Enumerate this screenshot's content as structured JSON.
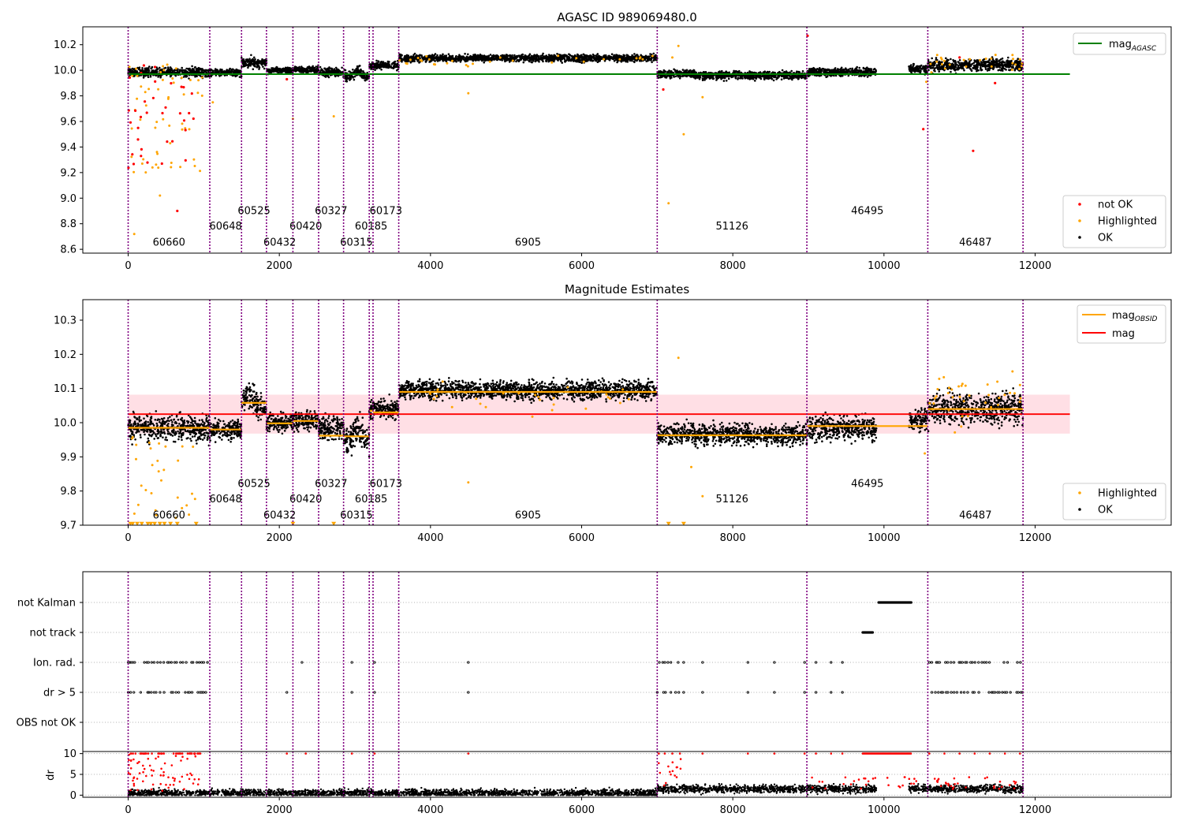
{
  "figure": {
    "width": 1500,
    "height": 1050
  },
  "chart_data": [
    {
      "type": "scatter",
      "title": "AGASC ID 989069480.0",
      "xlim": [
        -600,
        13800
      ],
      "ylim": [
        8.57,
        10.34
      ],
      "xticks": [
        0,
        2000,
        4000,
        6000,
        8000,
        10000,
        12000
      ],
      "yticks": [
        8.6,
        8.8,
        9.0,
        9.2,
        9.4,
        9.6,
        9.8,
        10.0,
        10.2
      ],
      "ytick_labels": [
        "8.6",
        "8.8",
        "9.0",
        "9.2",
        "9.4",
        "9.6",
        "9.8",
        "10.0",
        "10.2"
      ],
      "obsid_boundaries": [
        0,
        1080,
        1500,
        1830,
        2180,
        2520,
        2850,
        3190,
        3240,
        3580,
        7000,
        8980,
        10580,
        11840
      ],
      "obsid_labels": [
        {
          "text": "60660",
          "x": 540,
          "y": 8.63
        },
        {
          "text": "60648",
          "x": 1290,
          "y": 8.755
        },
        {
          "text": "60525",
          "x": 1665,
          "y": 8.875
        },
        {
          "text": "60432",
          "x": 2005,
          "y": 8.63
        },
        {
          "text": "60420",
          "x": 2350,
          "y": 8.755
        },
        {
          "text": "60327",
          "x": 2685,
          "y": 8.875
        },
        {
          "text": "60315",
          "x": 3020,
          "y": 8.63
        },
        {
          "text": "60185",
          "x": 3215,
          "y": 8.755
        },
        {
          "text": "60173",
          "x": 3410,
          "y": 8.875
        },
        {
          "text": "6905",
          "x": 5290,
          "y": 8.63
        },
        {
          "text": "51126",
          "x": 7990,
          "y": 8.755
        },
        {
          "text": "46495",
          "x": 9780,
          "y": 8.875
        },
        {
          "text": "46487",
          "x": 11210,
          "y": 8.63
        }
      ],
      "segments": [
        {
          "x0": 0,
          "x1": 1080,
          "level": 9.985,
          "spread": 0.018
        },
        {
          "x0": 1080,
          "x1": 1500,
          "level": 9.98,
          "spread": 0.013
        },
        {
          "x0": 1500,
          "x1": 1830,
          "level": 10.06,
          "spread": 0.02
        },
        {
          "x0": 1830,
          "x1": 2180,
          "level": 10.0,
          "spread": 0.012
        },
        {
          "x0": 2180,
          "x1": 2520,
          "level": 10.005,
          "spread": 0.013
        },
        {
          "x0": 2520,
          "x1": 2850,
          "level": 9.985,
          "spread": 0.018
        },
        {
          "x0": 2850,
          "x1": 3190,
          "level": 9.965,
          "spread": 0.02
        },
        {
          "x0": 3190,
          "x1": 3240,
          "level": 10.035,
          "spread": 0.012
        },
        {
          "x0": 3240,
          "x1": 3580,
          "level": 10.04,
          "spread": 0.014
        },
        {
          "x0": 3580,
          "x1": 7000,
          "level": 10.095,
          "spread": 0.013
        },
        {
          "x0": 7000,
          "x1": 8980,
          "level": 9.965,
          "spread": 0.015
        },
        {
          "x0": 8980,
          "x1": 9000,
          "level": 9.975,
          "spread": 0.015
        },
        {
          "x0": 9000,
          "x1": 9900,
          "level": 9.985,
          "spread": 0.017
        },
        {
          "x0": 10330,
          "x1": 10580,
          "level": 10.01,
          "spread": 0.016
        },
        {
          "x0": 10580,
          "x1": 11840,
          "level": 10.04,
          "spread": 0.022
        }
      ],
      "series": [
        {
          "name": "mag$_{AGASC}$",
          "display_name": "mag",
          "subscript": "AGASC",
          "color": "#008000",
          "y": 9.97,
          "x_range": [
            0,
            12460
          ]
        },
        {
          "name": "not OK",
          "color": "#ff0000"
        },
        {
          "name": "Highlighted",
          "color": "#ffa500"
        },
        {
          "name": "OK",
          "color": "#000000"
        }
      ],
      "legends": [
        {
          "position": "top-right",
          "entries": [
            "mag_AGASC"
          ]
        },
        {
          "position": "bottom-right",
          "entries": [
            "not OK",
            "Highlighted",
            "OK"
          ]
        }
      ],
      "grid": false
    },
    {
      "type": "scatter",
      "title": "Magnitude Estimates",
      "xlim": [
        -600,
        13800
      ],
      "ylim": [
        9.7,
        10.36
      ],
      "xticks": [
        0,
        2000,
        4000,
        6000,
        8000,
        10000,
        12000
      ],
      "yticks": [
        9.7,
        9.8,
        9.9,
        10.0,
        10.1,
        10.2,
        10.3
      ],
      "ytick_labels": [
        "9.7",
        "9.8",
        "9.9",
        "10.0",
        "10.1",
        "10.2",
        "10.3"
      ],
      "mag": 10.025,
      "mag_band": [
        9.968,
        10.082
      ],
      "mag_x_range": [
        0,
        12460
      ],
      "mag_obsid": [
        {
          "x0": 0,
          "x1": 1080,
          "y": 9.985
        },
        {
          "x0": 1080,
          "x1": 1500,
          "y": 9.98
        },
        {
          "x0": 1500,
          "x1": 1830,
          "y": 10.058
        },
        {
          "x0": 1830,
          "x1": 2180,
          "y": 9.998
        },
        {
          "x0": 2180,
          "x1": 2520,
          "y": 10.005
        },
        {
          "x0": 2520,
          "x1": 2850,
          "y": 9.962
        },
        {
          "x0": 2850,
          "x1": 3190,
          "y": 9.96
        },
        {
          "x0": 3190,
          "x1": 3240,
          "y": 10.035
        },
        {
          "x0": 3240,
          "x1": 3580,
          "y": 10.03
        },
        {
          "x0": 3580,
          "x1": 7000,
          "y": 10.09
        },
        {
          "x0": 7000,
          "x1": 8980,
          "y": 9.963
        },
        {
          "x0": 8980,
          "x1": 10580,
          "y": 9.99
        },
        {
          "x0": 10580,
          "x1": 11840,
          "y": 10.04
        }
      ],
      "series": [
        {
          "name": "mag$_{OBSID}$",
          "display_name": "mag",
          "subscript": "OBSID",
          "color": "#ffa500"
        },
        {
          "name": "mag",
          "color": "#ff0000"
        },
        {
          "name": "Highlighted",
          "color": "#ffa500"
        },
        {
          "name": "OK",
          "color": "#000000"
        }
      ],
      "legends": [
        {
          "position": "top-right",
          "entries": [
            "mag_OBSID",
            "mag"
          ]
        },
        {
          "position": "bottom-right",
          "entries": [
            "Highlighted",
            "OK"
          ]
        }
      ],
      "grid": false
    },
    {
      "type": "scatter",
      "title": "",
      "xlim": [
        -600,
        13800
      ],
      "categories": [
        "not Kalman",
        "not track",
        "Ion. rad.",
        "dr > 5",
        "OBS not OK"
      ],
      "flag_spans": [
        {
          "category": "not Kalman",
          "ranges": [
            [
              9930,
              10360
            ]
          ]
        },
        {
          "category": "not track",
          "ranges": [
            [
              9720,
              9850
            ]
          ]
        },
        {
          "category": "Ion. rad.",
          "ranges": [
            [
              0,
              1050
            ],
            [
              7000,
              7300
            ],
            [
              10600,
              11840
            ]
          ],
          "isolated": [
            2300,
            2960,
            3260,
            4500,
            7350,
            7600,
            8200,
            8550,
            8950,
            9100,
            9300,
            9450
          ]
        },
        {
          "category": "dr > 5",
          "ranges": [
            [
              0,
              1050
            ],
            [
              7000,
              7300
            ],
            [
              10600,
              11840
            ]
          ],
          "isolated": [
            2100,
            2960,
            3260,
            4500,
            7350,
            7600,
            8200,
            8550,
            8950,
            9100,
            9300,
            9450
          ]
        }
      ],
      "grid": "horizontal-dotted"
    },
    {
      "type": "scatter",
      "title": "",
      "ylabel": "dr",
      "xlim": [
        -600,
        13800
      ],
      "ylim": [
        -0.5,
        10.5
      ],
      "yticks": [
        0,
        5,
        10
      ],
      "ytick_labels": [
        "0",
        "5",
        "10"
      ],
      "xticks": [
        0,
        2000,
        4000,
        6000,
        8000,
        10000,
        12000
      ],
      "grid": "horizontal-dotted"
    }
  ],
  "tick_labels_x": [
    "0",
    "2000",
    "4000",
    "6000",
    "8000",
    "10000",
    "12000"
  ]
}
